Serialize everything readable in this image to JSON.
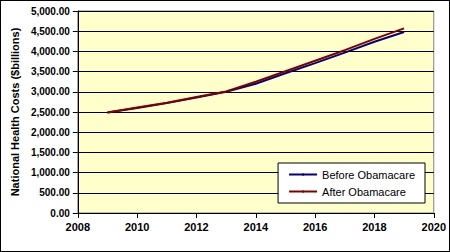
{
  "chart_data": {
    "type": "line",
    "y_label": "National Health Costs ($billions)",
    "x": [
      2009,
      2010,
      2011,
      2012,
      2013,
      2014,
      2015,
      2016,
      2017,
      2018,
      2019
    ],
    "series": [
      {
        "name": "Before Obamacare",
        "color": "#000080",
        "values": [
          2490,
          2600,
          2720,
          2860,
          3000,
          3200,
          3460,
          3710,
          3970,
          4240,
          4480
        ]
      },
      {
        "name": "After Obamacare",
        "color": "#800000",
        "values": [
          2490,
          2610,
          2730,
          2870,
          3010,
          3250,
          3510,
          3770,
          4030,
          4310,
          4570
        ]
      }
    ],
    "xlim": [
      2008,
      2020
    ],
    "xticks": [
      2008,
      2010,
      2012,
      2014,
      2016,
      2018,
      2020
    ],
    "ylim": [
      0,
      5000
    ],
    "yticks": [
      {
        "value": 0,
        "label": "0.00"
      },
      {
        "value": 500,
        "label": "500.00"
      },
      {
        "value": 1000,
        "label": "1,000.00"
      },
      {
        "value": 1500,
        "label": "1,500.00"
      },
      {
        "value": 2000,
        "label": "2,000.00"
      },
      {
        "value": 2500,
        "label": "2,500.00"
      },
      {
        "value": 3000,
        "label": "3,000.00"
      },
      {
        "value": 3500,
        "label": "3,500.00"
      },
      {
        "value": 4000,
        "label": "4,000.00"
      },
      {
        "value": 4500,
        "label": "4,500.00"
      },
      {
        "value": 5000,
        "label": "5,000.00"
      }
    ],
    "grid": true,
    "legend": "lower right",
    "marker": "none",
    "line_style": "solid"
  }
}
